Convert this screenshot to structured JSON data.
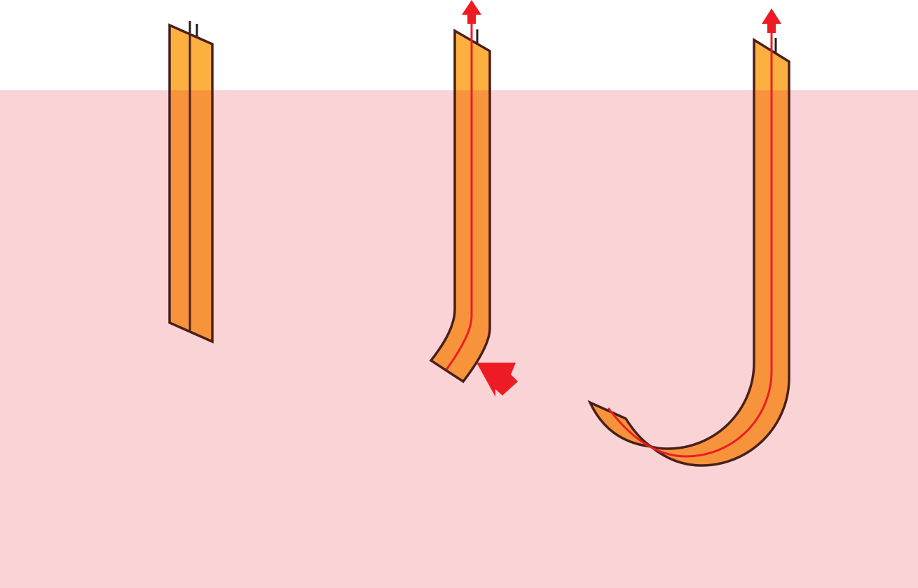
{
  "colors": {
    "background": "#ffffff",
    "tissue": "#f9d3d6",
    "above_tissue_fill": "#fbb040",
    "below_tissue_fill": "#f7943b",
    "outline": "#4a1f1a",
    "lumen_line": "#ed1c24",
    "arrow": "#ed1c24",
    "stub": "#231f20"
  },
  "panels": [
    {
      "id": "straight",
      "lumen_visible": false,
      "withdraw_arrow": false,
      "push_arrow": false
    },
    {
      "id": "bent",
      "lumen_visible": true,
      "withdraw_arrow": true,
      "push_arrow": true
    },
    {
      "id": "hooked",
      "lumen_visible": true,
      "withdraw_arrow": true,
      "push_arrow": false
    }
  ]
}
